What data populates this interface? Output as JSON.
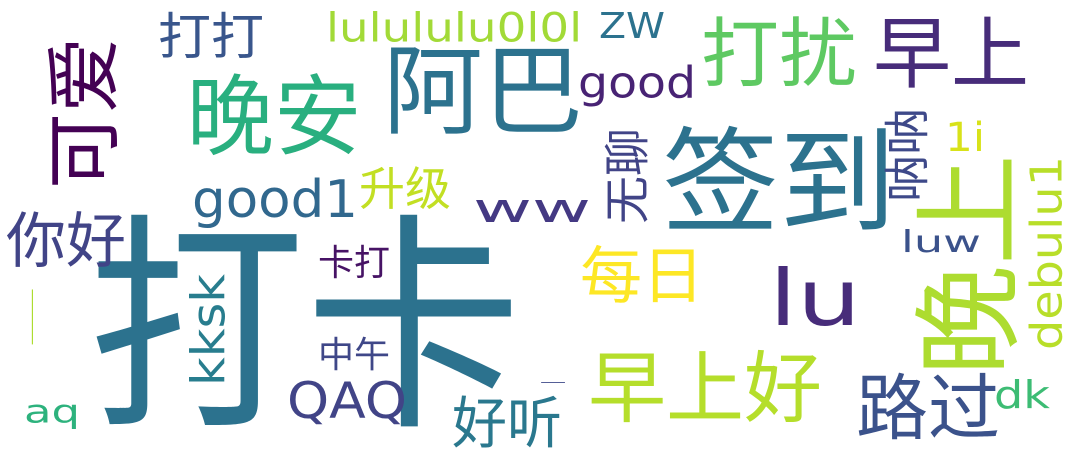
{
  "words": [
    {
      "text": "打卡",
      "color": "#2c728e",
      "rotated": false
    },
    {
      "text": "签到",
      "color": "#2c728e",
      "rotated": false
    },
    {
      "text": "阿巴",
      "color": "#2c728e",
      "rotated": false
    },
    {
      "text": "晚安",
      "color": "#29af7f",
      "rotated": false
    },
    {
      "text": "晚上",
      "color": "#addc30",
      "rotated": true
    },
    {
      "text": "lu",
      "color": "#472c7a",
      "rotated": false
    },
    {
      "text": "可爱",
      "color": "#440154",
      "rotated": true
    },
    {
      "text": "早上好",
      "color": "#b5de2b",
      "rotated": false
    },
    {
      "text": "打扰",
      "color": "#5ec962",
      "rotated": false
    },
    {
      "text": "早上",
      "color": "#472c7a",
      "rotated": false
    },
    {
      "text": "路过",
      "color": "#3b528b",
      "rotated": false
    },
    {
      "text": "每日",
      "color": "#fde725",
      "rotated": false
    },
    {
      "text": "ww",
      "color": "#443983",
      "rotated": false
    },
    {
      "text": "good1",
      "color": "#31688e",
      "rotated": false
    },
    {
      "text": "你好",
      "color": "#414487",
      "rotated": false
    },
    {
      "text": "QAQ",
      "color": "#414487",
      "rotated": false
    },
    {
      "text": "好听",
      "color": "#2a788e",
      "rotated": false
    },
    {
      "text": "kksk",
      "color": "#287d8e",
      "rotated": true
    },
    {
      "text": "打打",
      "color": "#39568c",
      "rotated": false
    },
    {
      "text": "lulululu0l0l",
      "color": "#a2da37",
      "rotated": false
    },
    {
      "text": "ZW",
      "color": "#2c728e",
      "rotated": false
    },
    {
      "text": "good",
      "color": "#482374",
      "rotated": false
    },
    {
      "text": "无聊",
      "color": "#414487",
      "rotated": true
    },
    {
      "text": "升级",
      "color": "#c2df23",
      "rotated": false
    },
    {
      "text": "呐呐",
      "color": "#3e4989",
      "rotated": true
    },
    {
      "text": "1i",
      "color": "#d8e219",
      "rotated": false
    },
    {
      "text": "卡打",
      "color": "#471365",
      "rotated": false
    },
    {
      "text": "中午",
      "color": "#3f4788",
      "rotated": false
    },
    {
      "text": "luw",
      "color": "#3b528b",
      "rotated": false
    },
    {
      "text": "debulu1",
      "color": "#b8de29",
      "rotated": true
    },
    {
      "text": "dk",
      "color": "#3dbc74",
      "rotated": false
    },
    {
      "text": "aq",
      "color": "#2db27d",
      "rotated": false
    },
    {
      "text": "一",
      "color": "#addc30",
      "rotated": true
    },
    {
      "text": "一",
      "color": "#3e4989",
      "rotated": false
    }
  ]
}
